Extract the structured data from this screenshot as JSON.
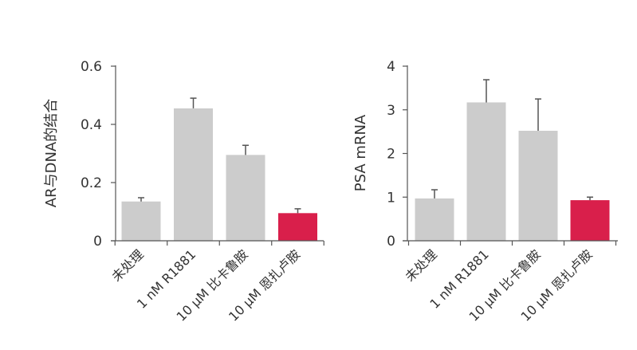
{
  "chart_data": [
    {
      "type": "bar",
      "ylabel": "AR与DNA的结合",
      "xlabel": "",
      "categories": [
        "未处理",
        "1 nM R1881",
        "10 μM 比卡鲁胺",
        "10 μM 恩扎卢胺"
      ],
      "values": [
        0.135,
        0.455,
        0.295,
        0.095
      ],
      "errors": [
        0.013,
        0.035,
        0.033,
        0.015
      ],
      "ylim": [
        0,
        0.6
      ],
      "yticks": [
        0,
        0.2,
        0.4,
        0.6
      ],
      "ytick_labels": [
        "0",
        "0.2",
        "0.4",
        "0.6"
      ],
      "bar_colors": [
        "#cccccc",
        "#cccccc",
        "#cccccc",
        "#d91f4b"
      ],
      "grid": false
    },
    {
      "type": "bar",
      "ylabel": "PSA mRNA",
      "xlabel": "",
      "categories": [
        "未处理",
        "1 nM R1881",
        "10 μM 比卡鲁胺",
        "10 μM 恩扎卢胺"
      ],
      "values": [
        0.97,
        3.17,
        2.52,
        0.93
      ],
      "errors": [
        0.2,
        0.52,
        0.73,
        0.07
      ],
      "ylim": [
        0,
        4
      ],
      "yticks": [
        0,
        1,
        2,
        3,
        4
      ],
      "ytick_labels": [
        "0",
        "1",
        "2",
        "3",
        "4"
      ],
      "bar_colors": [
        "#cccccc",
        "#cccccc",
        "#cccccc",
        "#d91f4b"
      ],
      "grid": false
    }
  ]
}
